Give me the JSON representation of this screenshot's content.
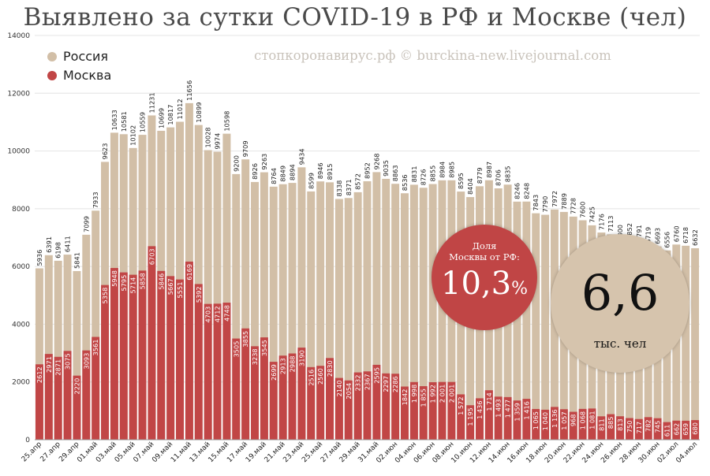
{
  "colors": {
    "russia": "#d2bfa7",
    "moscow": "#c14646"
  },
  "chart_data": {
    "type": "bar",
    "title": "Выявлено за сутки COVID-19 в РФ и Москве (чел)",
    "watermark": "стопкоронавирус.рф © burckina-new.livejournal.com",
    "ylim": [
      0,
      14000
    ],
    "yticks": [
      "0",
      "2000",
      "4000",
      "6000",
      "8000",
      "10000",
      "12000",
      "14000"
    ],
    "xtick_labels": [
      "25.апр",
      "27.апр",
      "29.апр",
      "01.май",
      "03.май",
      "05.май",
      "07.май",
      "09.май",
      "11.май",
      "13.май",
      "15.май",
      "17.май",
      "19.май",
      "21.май",
      "23.май",
      "25.май",
      "27.май",
      "29.май",
      "31.май",
      "02.июн",
      "04.июн",
      "06.июн",
      "08.июн",
      "10.июн",
      "12.июн",
      "14.июн",
      "16.июн",
      "18.июн",
      "20.июн",
      "22.июн",
      "24.июн",
      "26.июн",
      "28.июн",
      "30.июн",
      "02.июл",
      "04.июл"
    ],
    "legend": {
      "position": "top-left",
      "entries": [
        "Россия",
        "Москва"
      ]
    },
    "series": [
      {
        "name": "Россия",
        "values": [
          5936,
          6391,
          6198,
          6411,
          5841,
          7099,
          7933,
          9623,
          10633,
          10581,
          10102,
          10559,
          11231,
          10699,
          10817,
          11012,
          11656,
          10899,
          10028,
          9974,
          10598,
          9200,
          9709,
          8926,
          9263,
          8764,
          8849,
          8894,
          9434,
          8599,
          8946,
          8915,
          8338,
          8371,
          8572,
          8952,
          9268,
          9035,
          8863,
          8536,
          8831,
          8726,
          8855,
          8984,
          8985,
          8595,
          8404,
          8779,
          8987,
          8706,
          8835,
          8246,
          8248,
          7843,
          7790,
          7972,
          7889,
          7728,
          7600,
          7425,
          7176,
          7113,
          6800,
          6852,
          6791,
          6719,
          6693,
          6556,
          6760,
          6718,
          6632
        ]
      },
      {
        "name": "Москва",
        "values": [
          2612,
          2971,
          2871,
          3075,
          2220,
          3093,
          3561,
          5358,
          5948,
          5795,
          5714,
          5858,
          6703,
          5846,
          5667,
          5551,
          6169,
          5392,
          4703,
          4712,
          4748,
          3505,
          3855,
          3238,
          3545,
          2699,
          2913,
          2988,
          3190,
          2516,
          2560,
          2830,
          2140,
          2054,
          2332,
          2367,
          2595,
          2297,
          2286,
          1842,
          1998,
          1855,
          1992,
          2001,
          2001,
          1572,
          1195,
          1436,
          1714,
          1493,
          1477,
          1359,
          1416,
          1065,
          1040,
          1136,
          1057,
          968,
          1068,
          1081,
          811,
          885,
          813,
          750,
          717,
          782,
          745,
          611,
          662,
          659,
          680
        ]
      }
    ],
    "moscow_labels": [
      "2612",
      "2971",
      "2871",
      "3075",
      "2220",
      "3093",
      "3561",
      "5358",
      "5948",
      "5795",
      "5714",
      "5858",
      "6703",
      "5846",
      "5667",
      "5551",
      "6169",
      "5392",
      "4703",
      "4712",
      "4748",
      "3505",
      "3855",
      "3238",
      "3545",
      "2699",
      "2913",
      "2988",
      "3190",
      "2516",
      "2560",
      "2830",
      "2140",
      "2054",
      "2332",
      "2367",
      "2595",
      "2297",
      "2286",
      "1842",
      "1 998",
      "1 855",
      "1 992",
      "2 001",
      "2 001",
      "1 572",
      "1 195",
      "1 436",
      "1 714",
      "1 493",
      "1 477",
      "1 359",
      "1 416",
      "1 065",
      "1 040",
      "1 136",
      "1 057",
      "968",
      "1 068",
      "1 081",
      "811",
      "885",
      "813",
      "750",
      "717",
      "782",
      "745",
      "611",
      "662",
      "659",
      "680"
    ]
  },
  "annotations": {
    "share_caption_line1": "Доля",
    "share_caption_line2": "Москвы от РФ:",
    "share_value": "10,3",
    "share_pct": "%",
    "total_value": "6,6",
    "total_unit": "тыс. чел"
  }
}
